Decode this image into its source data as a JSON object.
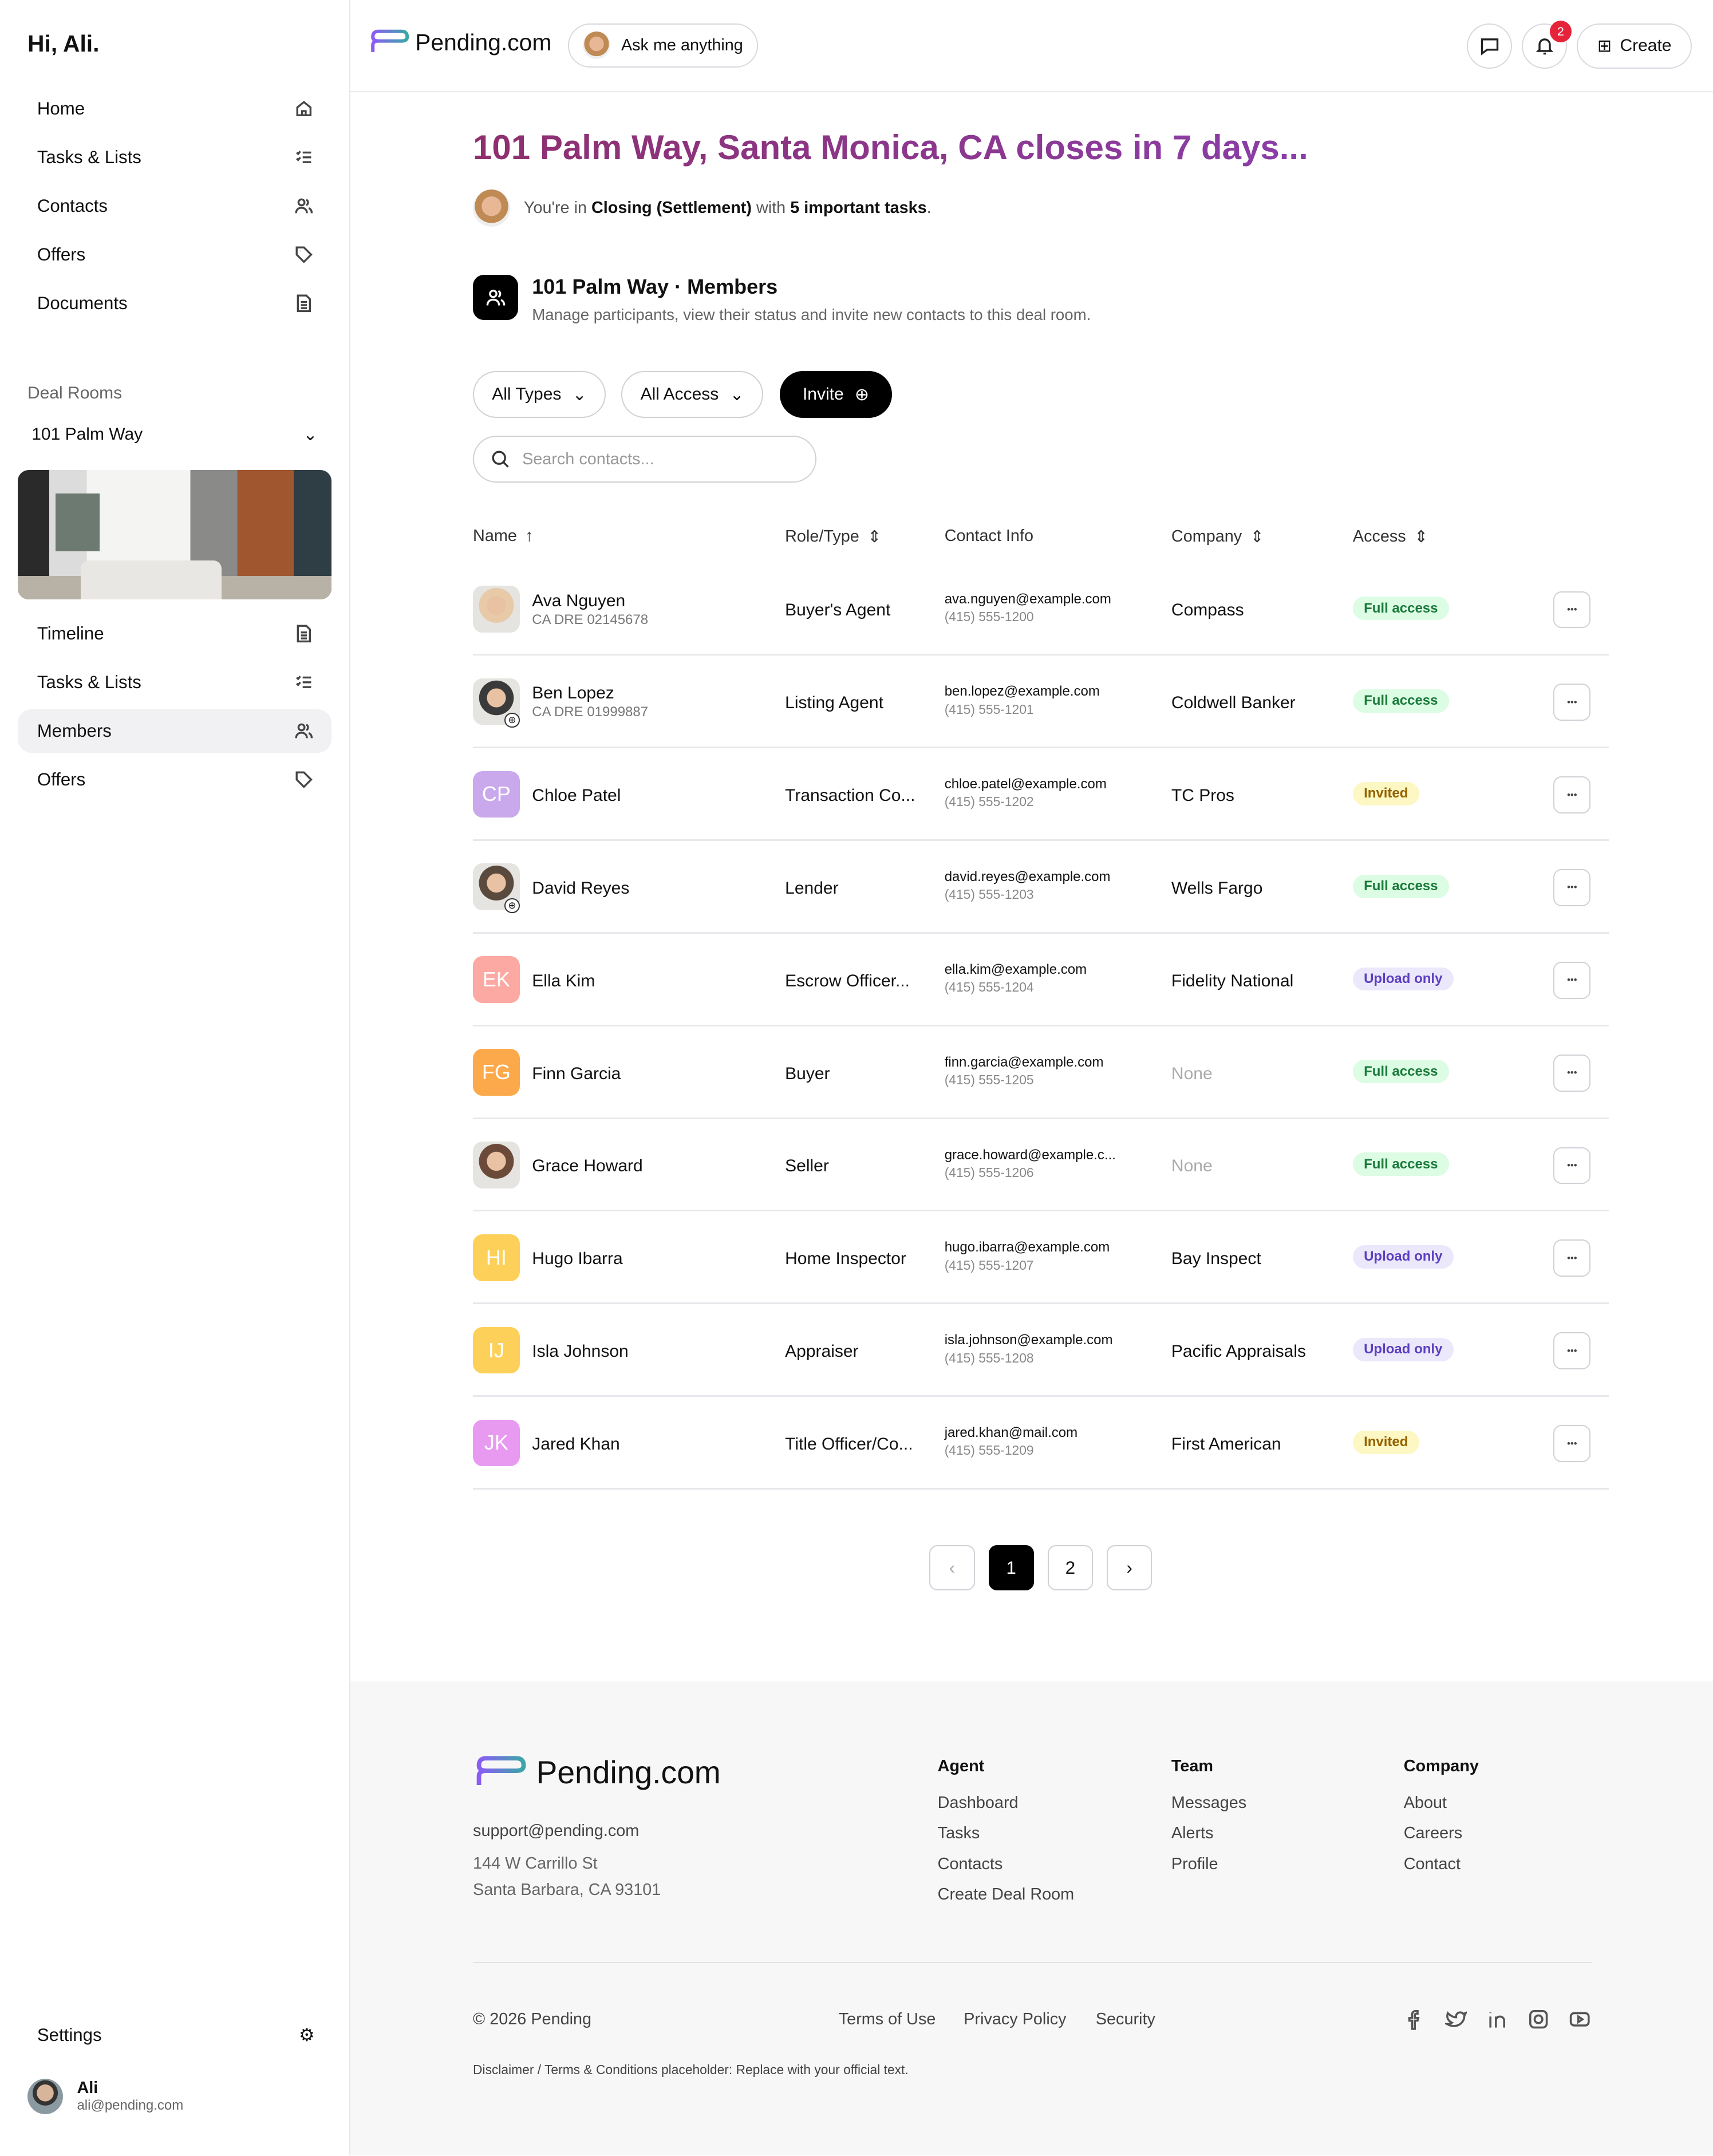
{
  "sidebar": {
    "greeting": "Hi, Ali.",
    "nav": [
      {
        "label": "Home",
        "icon": "home-icon"
      },
      {
        "label": "Tasks & Lists",
        "icon": "checklist-icon"
      },
      {
        "label": "Contacts",
        "icon": "users-icon"
      },
      {
        "label": "Offers",
        "icon": "tag-icon"
      },
      {
        "label": "Documents",
        "icon": "document-icon"
      }
    ],
    "deal_rooms_label": "Deal Rooms",
    "room": "101 Palm Way",
    "room_nav": [
      {
        "label": "Timeline",
        "icon": "document-icon"
      },
      {
        "label": "Tasks & Lists",
        "icon": "checklist-icon"
      },
      {
        "label": "Members",
        "icon": "users-icon",
        "active": true
      },
      {
        "label": "Offers",
        "icon": "tag-icon"
      }
    ],
    "settings": "Settings",
    "user": {
      "name": "Ali",
      "email": "ali@pending.com"
    }
  },
  "header": {
    "brand": "Pending.com",
    "ask": "Ask me anything",
    "notifications": "2",
    "create": "Create"
  },
  "page": {
    "title": "101 Palm Way, Santa Monica, CA closes in 7 days...",
    "sub_pre": "You're in ",
    "stage": "Closing (Settlement)",
    "sub_mid": " with ",
    "tasks": "5 important tasks",
    "sub_end": ".",
    "section_title": "101 Palm Way · Members",
    "section_desc": "Manage participants, view their status and invite new contacts to this deal room.",
    "filters": {
      "types": "All Types",
      "access": "All Access",
      "invite": "Invite"
    },
    "search_placeholder": "Search contacts..."
  },
  "table": {
    "headers": [
      "Name",
      "Role/Type",
      "Contact Info",
      "Company",
      "Access"
    ],
    "rows": [
      {
        "name": "Ava Nguyen",
        "dre": "CA DRE 02145678",
        "role": "Buyer's Agent",
        "email": "ava.nguyen@example.com",
        "phone": "(415) 555-1200",
        "company": "Compass",
        "access": "Full access",
        "kind": "full",
        "photo": true,
        "color": "#e8c9a8"
      },
      {
        "name": "Ben Lopez",
        "dre": "CA DRE 01999887",
        "role": "Listing Agent",
        "email": "ben.lopez@example.com",
        "phone": "(415) 555-1201",
        "company": "Coldwell Banker",
        "access": "Full access",
        "kind": "full",
        "photo": true,
        "globe": true,
        "color": "#3a3a3a"
      },
      {
        "name": "Chloe Patel",
        "initials": "CP",
        "role": "Transaction Co...",
        "email": "chloe.patel@example.com",
        "phone": "(415) 555-1202",
        "company": "TC Pros",
        "access": "Invited",
        "kind": "inv",
        "color": "#c9a8ec"
      },
      {
        "name": "David Reyes",
        "role": "Lender",
        "email": "david.reyes@example.com",
        "phone": "(415) 555-1203",
        "company": "Wells Fargo",
        "access": "Full access",
        "kind": "full",
        "photo": true,
        "globe": true,
        "color": "#5a4a3e"
      },
      {
        "name": "Ella Kim",
        "initials": "EK",
        "role": "Escrow Officer...",
        "email": "ella.kim@example.com",
        "phone": "(415) 555-1204",
        "company": "Fidelity National",
        "access": "Upload only",
        "kind": "up",
        "color": "#fba9a2"
      },
      {
        "name": "Finn Garcia",
        "initials": "FG",
        "role": "Buyer",
        "email": "finn.garcia@example.com",
        "phone": "(415) 555-1205",
        "company": "None",
        "access": "Full access",
        "kind": "full",
        "color": "#fba94a"
      },
      {
        "name": "Grace Howard",
        "role": "Seller",
        "email": "grace.howard@example.c...",
        "phone": "(415) 555-1206",
        "company": "None",
        "access": "Full access",
        "kind": "full",
        "photo": true,
        "color": "#6b4a3a"
      },
      {
        "name": "Hugo Ibarra",
        "initials": "HI",
        "role": "Home Inspector",
        "email": "hugo.ibarra@example.com",
        "phone": "(415) 555-1207",
        "company": "Bay Inspect",
        "access": "Upload only",
        "kind": "up",
        "color": "#fdd05a"
      },
      {
        "name": "Isla Johnson",
        "initials": "IJ",
        "role": "Appraiser",
        "email": "isla.johnson@example.com",
        "phone": "(415) 555-1208",
        "company": "Pacific Appraisals",
        "access": "Upload only",
        "kind": "up",
        "color": "#fdd05a"
      },
      {
        "name": "Jared Khan",
        "initials": "JK",
        "role": "Title Officer/Co...",
        "email": "jared.khan@mail.com",
        "phone": "(415) 555-1209",
        "company": "First American",
        "access": "Invited",
        "kind": "inv",
        "color": "#e79af0"
      }
    ]
  },
  "pagination": {
    "pages": [
      "1",
      "2"
    ],
    "current": "1"
  },
  "footer": {
    "brand": "Pending.com",
    "email": "support@pending.com",
    "addr1": "144 W Carrillo St",
    "addr2": "Santa Barbara, CA 93101",
    "cols": [
      {
        "title": "Agent",
        "links": [
          "Dashboard",
          "Tasks",
          "Contacts",
          "Create Deal Room"
        ]
      },
      {
        "title": "Team",
        "links": [
          "Messages",
          "Alerts",
          "Profile"
        ]
      },
      {
        "title": "Company",
        "links": [
          "About",
          "Careers",
          "Contact"
        ]
      }
    ],
    "copyright": "© 2026 Pending",
    "legal": [
      "Terms of Use",
      "Privacy Policy",
      "Security"
    ],
    "social": [
      "facebook-icon",
      "twitter-icon",
      "linkedin-icon",
      "instagram-icon",
      "youtube-icon"
    ],
    "disclaimer": "Disclaimer / Terms & Conditions placeholder: Replace with your official text."
  }
}
